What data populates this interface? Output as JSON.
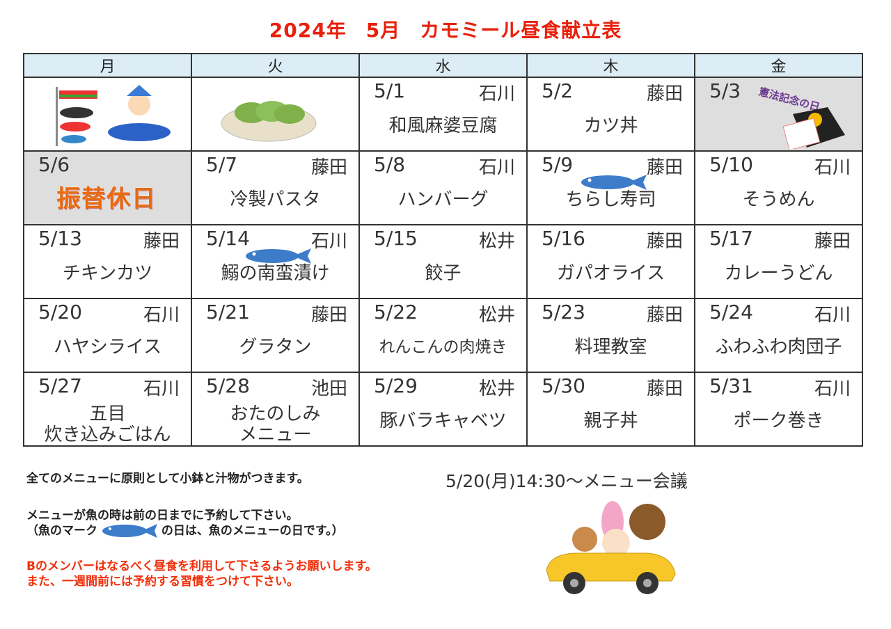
{
  "title": {
    "year": "2024年",
    "month": "5月",
    "name": "カモミール昼食献立表"
  },
  "weekdays": [
    "月",
    "火",
    "水",
    "木",
    "金"
  ],
  "rows": [
    [
      {
        "image": "koinobori"
      },
      {
        "image": "kashiwa-mochi"
      },
      {
        "date": "5/1",
        "staff": "石川",
        "menu": "和風麻婆豆腐"
      },
      {
        "date": "5/2",
        "staff": "藤田",
        "menu": "カツ丼"
      },
      {
        "date": "5/3",
        "holiday_label": "憲法記念の日",
        "gray": true
      }
    ],
    [
      {
        "date": "5/6",
        "holiday_label": "振替休日",
        "gray": true
      },
      {
        "date": "5/7",
        "staff": "藤田",
        "menu": "冷製パスタ"
      },
      {
        "date": "5/8",
        "staff": "石川",
        "menu": "ハンバーグ"
      },
      {
        "date": "5/9",
        "staff": "藤田",
        "menu": "ちらし寿司",
        "fish": true
      },
      {
        "date": "5/10",
        "staff": "石川",
        "menu": "そうめん"
      }
    ],
    [
      {
        "date": "5/13",
        "staff": "藤田",
        "menu": "チキンカツ"
      },
      {
        "date": "5/14",
        "staff": "石川",
        "menu": "鰯の南蛮漬け",
        "fish": true
      },
      {
        "date": "5/15",
        "staff": "松井",
        "menu": "餃子"
      },
      {
        "date": "5/16",
        "staff": "藤田",
        "menu": "ガパオライス"
      },
      {
        "date": "5/17",
        "staff": "藤田",
        "menu": "カレーうどん"
      }
    ],
    [
      {
        "date": "5/20",
        "staff": "石川",
        "menu": "ハヤシライス"
      },
      {
        "date": "5/21",
        "staff": "藤田",
        "menu": "グラタン"
      },
      {
        "date": "5/22",
        "staff": "松井",
        "menu": "れんこんの肉焼き"
      },
      {
        "date": "5/23",
        "staff": "藤田",
        "menu": "料理教室"
      },
      {
        "date": "5/24",
        "staff": "石川",
        "menu": "ふわふわ肉団子"
      }
    ],
    [
      {
        "date": "5/27",
        "staff": "石川",
        "menu": "五目\n炊き込みごはん"
      },
      {
        "date": "5/28",
        "staff": "池田",
        "menu": "おたのしみ\nメニュー"
      },
      {
        "date": "5/29",
        "staff": "松井",
        "menu": "豚バラキャベツ"
      },
      {
        "date": "5/30",
        "staff": "藤田",
        "menu": "親子丼"
      },
      {
        "date": "5/31",
        "staff": "石川",
        "menu": "ポーク巻き"
      }
    ]
  ],
  "notes": {
    "side_dishes": "全てのメニューに原則として小鉢と汁物がつきます。",
    "fish_reserve": "メニューが魚の時は前の日までに予約して下さい。",
    "fish_mark_pre": "（魚のマーク",
    "fish_mark_post": "の日は、魚のメニューの日です。）",
    "request1": "Bのメンバーはなるべく昼食を利用して下さるようお願いします。",
    "request2": "また、一週間前には予約する習慣をつけて下さい。",
    "meeting": "5/20(月)14:30～メニュー会議"
  },
  "colors": {
    "title": "#e8200c",
    "header_bg": "#dcedf5",
    "holiday_bg": "#dedede",
    "fish": "#3d7cc9",
    "warning": "#f0300c"
  }
}
